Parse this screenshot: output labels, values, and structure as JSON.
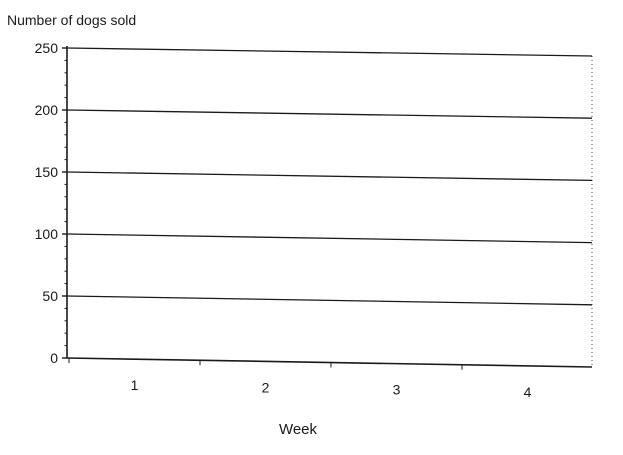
{
  "chart_data": {
    "type": "line",
    "title": "",
    "ylabel": "Number of dogs sold",
    "xlabel": "Week",
    "x": [
      1,
      2,
      3,
      4
    ],
    "x_ticks": [
      "1",
      "2",
      "3",
      "4"
    ],
    "y_ticks": [
      "0",
      "50",
      "100",
      "150",
      "200",
      "250"
    ],
    "ylim": [
      0,
      250
    ],
    "grid": true,
    "series": [],
    "colors": {
      "axis": "#1a1a1a",
      "grid": "#1a1a1a",
      "text": "#1a1a1a",
      "background": "#ffffff"
    }
  }
}
